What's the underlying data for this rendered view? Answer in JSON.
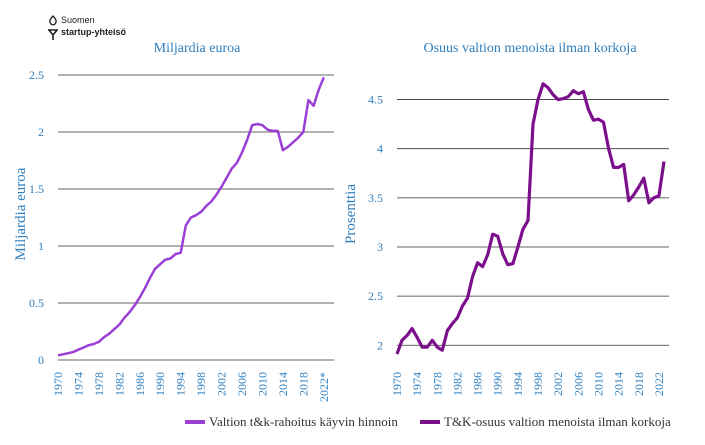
{
  "logo": {
    "line1": "Suomen",
    "line2": "startup-yhteisö"
  },
  "colors": {
    "funding": "#9b3fd6",
    "share": "#7b0f8c",
    "text_blue": "#2f7fbf",
    "grid": "#333333"
  },
  "chart_data": [
    {
      "type": "line",
      "title": "Miljardia euroa",
      "ylabel": "Miljardia euroa",
      "xlabel": "",
      "xlim": [
        1970,
        2024
      ],
      "ylim": [
        0,
        2.5
      ],
      "yticks": [
        0,
        0.5,
        1,
        1.5,
        2,
        2.5
      ],
      "ytick_labels": [
        "0",
        "0.5",
        "1",
        "1.5",
        "2",
        "2.5"
      ],
      "xticks": [
        1970,
        1974,
        1978,
        1982,
        1986,
        1990,
        1994,
        1998,
        2002,
        2006,
        2010,
        2014,
        2018,
        2022
      ],
      "xtick_labels": [
        "1970",
        "1974",
        "1978",
        "1982",
        "1986",
        "1990",
        "1994",
        "1998",
        "2002",
        "2006",
        "2010",
        "2014",
        "2018",
        "2022*"
      ],
      "series": [
        {
          "name": "Valtion t&k-rahoitus käyvin hinnoin",
          "x": [
            1970,
            1971,
            1972,
            1973,
            1974,
            1975,
            1976,
            1977,
            1978,
            1979,
            1980,
            1981,
            1982,
            1983,
            1984,
            1985,
            1986,
            1987,
            1988,
            1989,
            1990,
            1991,
            1992,
            1993,
            1994,
            1995,
            1996,
            1997,
            1998,
            1999,
            2000,
            2001,
            2002,
            2003,
            2004,
            2005,
            2006,
            2007,
            2008,
            2009,
            2010,
            2011,
            2012,
            2013,
            2014,
            2015,
            2016,
            2017,
            2018,
            2019,
            2020,
            2021,
            2022
          ],
          "values": [
            0.04,
            0.05,
            0.06,
            0.07,
            0.09,
            0.11,
            0.13,
            0.14,
            0.16,
            0.2,
            0.23,
            0.27,
            0.31,
            0.37,
            0.42,
            0.48,
            0.55,
            0.63,
            0.72,
            0.8,
            0.84,
            0.88,
            0.89,
            0.93,
            0.94,
            1.18,
            1.25,
            1.27,
            1.3,
            1.35,
            1.39,
            1.45,
            1.52,
            1.6,
            1.68,
            1.73,
            1.82,
            1.93,
            2.06,
            2.07,
            2.06,
            2.02,
            2.01,
            2.01,
            1.84,
            1.87,
            1.91,
            1.95,
            2.0,
            2.28,
            2.23,
            2.37,
            2.48
          ]
        }
      ]
    },
    {
      "type": "line",
      "title": "Osuus valtion menoista ilman korkoja",
      "ylabel": "Prosenttia",
      "xlabel": "",
      "xlim": [
        1970,
        2024
      ],
      "ylim": [
        1.85,
        4.75
      ],
      "yticks": [
        2,
        2.5,
        3,
        3.5,
        4,
        4.5
      ],
      "ytick_labels": [
        "2",
        "2.5",
        "3",
        "3.5",
        "4",
        "4.5"
      ],
      "xticks": [
        1970,
        1974,
        1978,
        1982,
        1986,
        1990,
        1994,
        1998,
        2002,
        2006,
        2010,
        2014,
        2018,
        2022
      ],
      "xtick_labels": [
        "1970",
        "1974",
        "1978",
        "1982",
        "1986",
        "1990",
        "1994",
        "1998",
        "2002",
        "2006",
        "2010",
        "2014",
        "2018",
        "2022"
      ],
      "series": [
        {
          "name": "T&K-osuus valtion menoista ilman korkoja",
          "x": [
            1970,
            1971,
            1972,
            1973,
            1974,
            1975,
            1976,
            1977,
            1978,
            1979,
            1980,
            1981,
            1982,
            1983,
            1984,
            1985,
            1986,
            1987,
            1988,
            1989,
            1990,
            1991,
            1992,
            1993,
            1994,
            1995,
            1996,
            1997,
            1998,
            1999,
            2000,
            2001,
            2002,
            2003,
            2004,
            2005,
            2006,
            2007,
            2008,
            2009,
            2010,
            2011,
            2012,
            2013,
            2014,
            2015,
            2016,
            2017,
            2018,
            2019,
            2020,
            2021,
            2022,
            2023
          ],
          "values": [
            1.91,
            2.05,
            2.1,
            2.17,
            2.08,
            1.98,
            1.98,
            2.05,
            1.98,
            1.95,
            2.15,
            2.22,
            2.28,
            2.4,
            2.48,
            2.7,
            2.84,
            2.8,
            2.92,
            3.13,
            3.11,
            2.93,
            2.82,
            2.83,
            3.0,
            3.18,
            3.27,
            4.25,
            4.5,
            4.66,
            4.62,
            4.55,
            4.5,
            4.51,
            4.53,
            4.59,
            4.56,
            4.58,
            4.4,
            4.29,
            4.3,
            4.27,
            4.0,
            3.81,
            3.81,
            3.84,
            3.47,
            3.53,
            3.61,
            3.7,
            3.45,
            3.5,
            3.52,
            3.87
          ]
        }
      ]
    }
  ],
  "legend": [
    {
      "label": "Valtion t&k-rahoitus  käyvin hinnoin"
    },
    {
      "label": "T&K-osuus valtion menoista ilman korkoja"
    }
  ]
}
